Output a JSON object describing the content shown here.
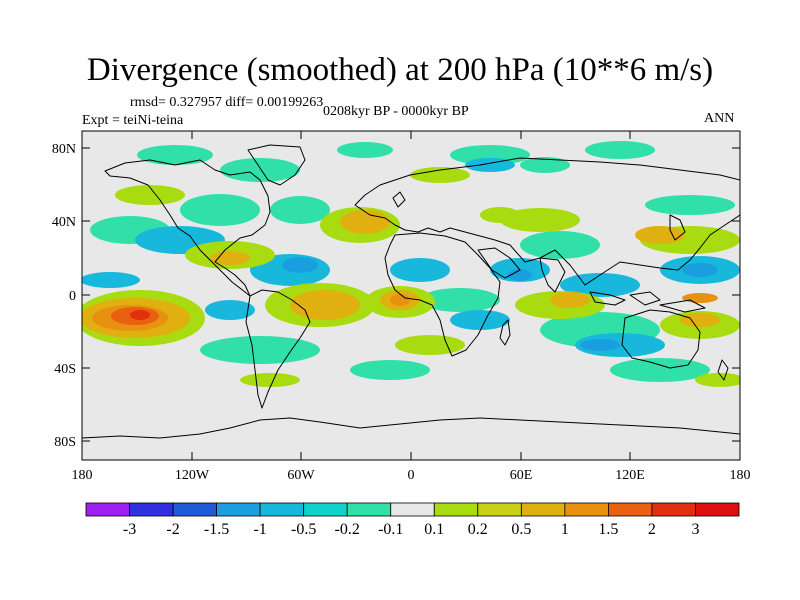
{
  "title": "Divergence (smoothed) at 200 hPa (10**6 m/s)",
  "stats": "rmsd= 0.327957 diff= 0.00199263",
  "experiment": "Expt = teiNi-teina",
  "period": "0208kyr BP - 0000kyr BP",
  "season": "ANN",
  "lat_labels": [
    "80N",
    "40N",
    "0",
    "40S",
    "80S"
  ],
  "lon_labels": [
    "180",
    "120W",
    "60W",
    "0",
    "60E",
    "120E",
    "180"
  ],
  "colorbar": {
    "labels": [
      "-3",
      "-2",
      "-1.5",
      "-1",
      "-0.5",
      "-0.2",
      "-0.1",
      "0.1",
      "0.2",
      "0.5",
      "1",
      "1.5",
      "2",
      "3"
    ],
    "colors": [
      "#a020f0",
      "#3030e0",
      "#1c5cd8",
      "#1a9ee0",
      "#18b8dc",
      "#10d2c8",
      "#30e0a8",
      "#e8e8e8",
      "#a8dc10",
      "#c8d018",
      "#e0b010",
      "#e89010",
      "#e86010",
      "#e03010",
      "#e01010"
    ]
  },
  "colors": {
    "ocean_neutral": "#e8e8e8",
    "coast": "#000000"
  }
}
